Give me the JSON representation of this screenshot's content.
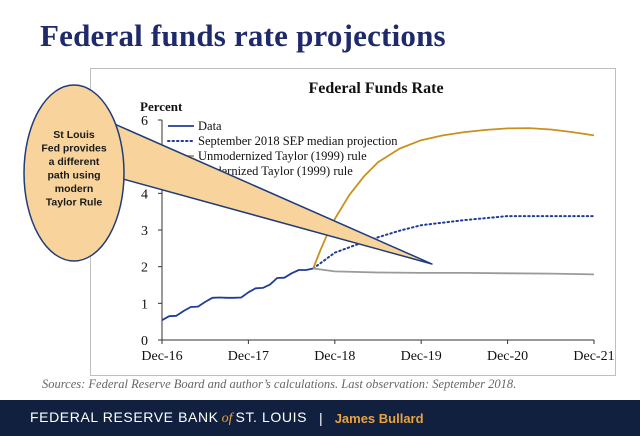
{
  "slide": {
    "title": "Federal funds rate projections",
    "sources": "Sources: Federal Reserve Board and author’s calculations. Last observation: September 2018.",
    "footer_org_left": "FEDERAL RESERVE BANK",
    "footer_org_of": "of",
    "footer_org_right": "ST. LOUIS",
    "footer_sep": "|",
    "footer_name": "James Bullard"
  },
  "callout": {
    "lines": [
      "St Louis",
      "Fed provides",
      "a different",
      "path using",
      "modern",
      "Taylor Rule"
    ],
    "fill": "#f8d49c",
    "stroke": "#1f3c7a"
  },
  "chart_data": {
    "type": "line",
    "title": "Federal Funds Rate",
    "ylabel": "Percent",
    "xlabel": "",
    "ylim": [
      0,
      6
    ],
    "yticks": [
      0,
      1,
      2,
      3,
      4,
      5,
      6
    ],
    "xlim": [
      "2016-12",
      "2021-12"
    ],
    "xticks": [
      "Dec-16",
      "Dec-17",
      "Dec-18",
      "Dec-19",
      "Dec-20",
      "Dec-21"
    ],
    "grid": false,
    "legend_position": "top-left",
    "series": [
      {
        "name": "Data",
        "color": "#1f3c99",
        "style": "solid",
        "points": [
          [
            "2016-12",
            0.54
          ],
          [
            "2017-01",
            0.65
          ],
          [
            "2017-02",
            0.66
          ],
          [
            "2017-03",
            0.79
          ],
          [
            "2017-04",
            0.9
          ],
          [
            "2017-05",
            0.91
          ],
          [
            "2017-06",
            1.04
          ],
          [
            "2017-07",
            1.15
          ],
          [
            "2017-08",
            1.16
          ],
          [
            "2017-09",
            1.15
          ],
          [
            "2017-10",
            1.15
          ],
          [
            "2017-11",
            1.16
          ],
          [
            "2017-12",
            1.3
          ],
          [
            "2018-01",
            1.41
          ],
          [
            "2018-02",
            1.42
          ],
          [
            "2018-03",
            1.51
          ],
          [
            "2018-04",
            1.69
          ],
          [
            "2018-05",
            1.7
          ],
          [
            "2018-06",
            1.82
          ],
          [
            "2018-07",
            1.91
          ],
          [
            "2018-08",
            1.91
          ],
          [
            "2018-09",
            1.95
          ]
        ]
      },
      {
        "name": "September 2018 SEP median projection",
        "color": "#1f3c99",
        "style": "dotted",
        "points": [
          [
            "2018-09",
            1.95
          ],
          [
            "2018-12",
            2.38
          ],
          [
            "2019-03",
            2.6
          ],
          [
            "2019-06",
            2.8
          ],
          [
            "2019-09",
            2.98
          ],
          [
            "2019-12",
            3.13
          ],
          [
            "2020-06",
            3.27
          ],
          [
            "2020-12",
            3.38
          ],
          [
            "2021-06",
            3.38
          ],
          [
            "2021-12",
            3.38
          ]
        ]
      },
      {
        "name": "Unmodernized Taylor (1999) rule",
        "color": "#c8911e",
        "style": "solid",
        "points": [
          [
            "2018-09",
            1.95
          ],
          [
            "2018-10",
            2.45
          ],
          [
            "2018-11",
            2.9
          ],
          [
            "2018-12",
            3.3
          ],
          [
            "2019-02",
            3.95
          ],
          [
            "2019-04",
            4.45
          ],
          [
            "2019-06",
            4.85
          ],
          [
            "2019-09",
            5.22
          ],
          [
            "2019-12",
            5.45
          ],
          [
            "2020-03",
            5.58
          ],
          [
            "2020-06",
            5.67
          ],
          [
            "2020-09",
            5.73
          ],
          [
            "2020-12",
            5.77
          ],
          [
            "2021-03",
            5.78
          ],
          [
            "2021-06",
            5.74
          ],
          [
            "2021-09",
            5.67
          ],
          [
            "2021-12",
            5.58
          ]
        ]
      },
      {
        "name": "Modernized Taylor (1999) rule",
        "color": "#9a9a9a",
        "style": "solid",
        "points": [
          [
            "2018-09",
            1.95
          ],
          [
            "2018-12",
            1.87
          ],
          [
            "2019-06",
            1.84
          ],
          [
            "2019-12",
            1.83
          ],
          [
            "2020-06",
            1.83
          ],
          [
            "2020-12",
            1.82
          ],
          [
            "2021-06",
            1.81
          ],
          [
            "2021-12",
            1.79
          ]
        ]
      }
    ]
  }
}
